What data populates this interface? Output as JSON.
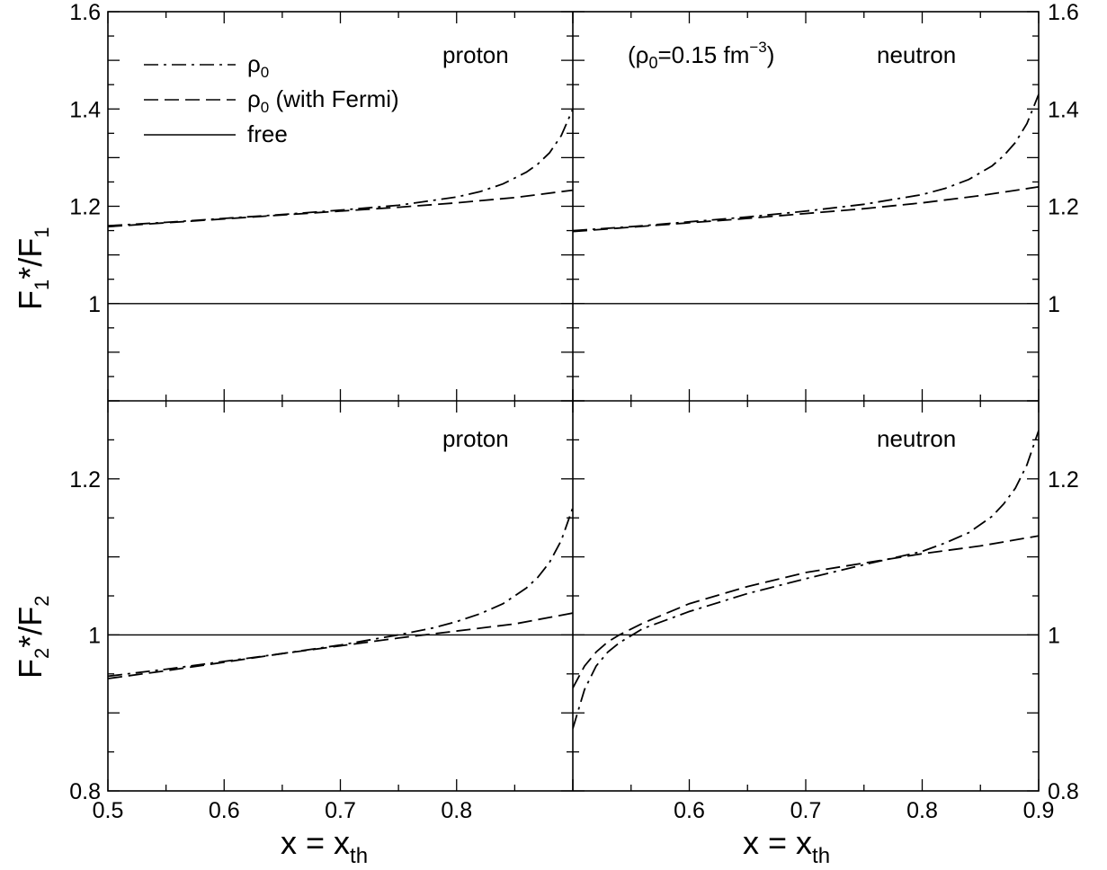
{
  "chart_data": [
    {
      "type": "line",
      "panel": "top-left",
      "label": "proton",
      "ylabel": {
        "main": "F",
        "sub1": "1",
        "mid": "*/F",
        "sub2": "1"
      },
      "xlim": [
        0.5,
        0.9
      ],
      "ylim": [
        0.8,
        1.6
      ],
      "yticks": [
        "1",
        "1.2",
        "1.4",
        "1.6"
      ],
      "series": [
        {
          "name": "ρ0",
          "style": "dashdot",
          "x": [
            0.5,
            0.55,
            0.6,
            0.65,
            0.7,
            0.75,
            0.8,
            0.82,
            0.84,
            0.86,
            0.87,
            0.88,
            0.89,
            0.9
          ],
          "y": [
            1.16,
            1.167,
            1.175,
            1.183,
            1.192,
            1.202,
            1.219,
            1.23,
            1.246,
            1.27,
            1.287,
            1.31,
            1.345,
            1.4
          ]
        },
        {
          "name": "ρ0 (with Fermi)",
          "style": "dashed",
          "x": [
            0.5,
            0.55,
            0.6,
            0.65,
            0.7,
            0.75,
            0.8,
            0.85,
            0.9
          ],
          "y": [
            1.158,
            1.166,
            1.174,
            1.182,
            1.19,
            1.198,
            1.207,
            1.218,
            1.233
          ]
        },
        {
          "name": "free",
          "style": "solid",
          "x": [
            0.5,
            0.9
          ],
          "y": [
            1.0,
            1.0
          ]
        }
      ]
    },
    {
      "type": "line",
      "panel": "top-right",
      "label": "neutron",
      "xlim": [
        0.5,
        0.9
      ],
      "ylim": [
        0.8,
        1.6
      ],
      "yticks": [
        "1",
        "1.2",
        "1.4",
        "1.6"
      ],
      "series": [
        {
          "name": "ρ0",
          "style": "dashdot",
          "x": [
            0.5,
            0.55,
            0.6,
            0.65,
            0.7,
            0.75,
            0.8,
            0.82,
            0.84,
            0.86,
            0.87,
            0.88,
            0.89,
            0.9
          ],
          "y": [
            1.15,
            1.158,
            1.168,
            1.178,
            1.19,
            1.204,
            1.224,
            1.237,
            1.255,
            1.283,
            1.304,
            1.331,
            1.37,
            1.43
          ]
        },
        {
          "name": "ρ0 (with Fermi)",
          "style": "dashed",
          "x": [
            0.5,
            0.55,
            0.6,
            0.65,
            0.7,
            0.75,
            0.8,
            0.85,
            0.9
          ],
          "y": [
            1.148,
            1.157,
            1.166,
            1.175,
            1.185,
            1.195,
            1.207,
            1.222,
            1.24
          ]
        },
        {
          "name": "free",
          "style": "solid",
          "x": [
            0.5,
            0.9
          ],
          "y": [
            1.0,
            1.0
          ]
        }
      ]
    },
    {
      "type": "line",
      "panel": "bottom-left",
      "label": "proton",
      "xlabel": {
        "main": "x = x",
        "sub": "th"
      },
      "ylabel": {
        "main": "F",
        "sub1": "2",
        "mid": "*/F",
        "sub2": "2"
      },
      "xlim": [
        0.5,
        0.9
      ],
      "ylim": [
        0.8,
        1.3
      ],
      "xticks": [
        "0.5",
        "0.6",
        "0.7",
        "0.8"
      ],
      "yticks": [
        "0.8",
        "1",
        "1.2"
      ],
      "series": [
        {
          "name": "ρ0",
          "style": "dashdot",
          "x": [
            0.5,
            0.55,
            0.6,
            0.65,
            0.7,
            0.75,
            0.78,
            0.8,
            0.82,
            0.84,
            0.86,
            0.87,
            0.88,
            0.89,
            0.9
          ],
          "y": [
            0.947,
            0.956,
            0.966,
            0.976,
            0.987,
            1.0,
            1.009,
            1.017,
            1.027,
            1.04,
            1.06,
            1.074,
            1.093,
            1.121,
            1.163
          ]
        },
        {
          "name": "ρ0 (with Fermi)",
          "style": "dashed",
          "x": [
            0.5,
            0.55,
            0.6,
            0.65,
            0.7,
            0.75,
            0.8,
            0.85,
            0.9
          ],
          "y": [
            0.944,
            0.954,
            0.965,
            0.976,
            0.986,
            0.996,
            1.005,
            1.014,
            1.028
          ]
        },
        {
          "name": "free",
          "style": "solid",
          "x": [
            0.5,
            0.9
          ],
          "y": [
            1.0,
            1.0
          ]
        }
      ]
    },
    {
      "type": "line",
      "panel": "bottom-right",
      "label": "neutron",
      "xlabel": {
        "main": "x = x",
        "sub": "th"
      },
      "xlim": [
        0.5,
        0.9
      ],
      "ylim": [
        0.8,
        1.3
      ],
      "xticks": [
        "0.6",
        "0.7",
        "0.8",
        "0.9"
      ],
      "yticks": [
        "0.8",
        "1",
        "1.2"
      ],
      "series": [
        {
          "name": "ρ0",
          "style": "dashdot",
          "x": [
            0.5,
            0.51,
            0.52,
            0.53,
            0.54,
            0.56,
            0.6,
            0.65,
            0.7,
            0.75,
            0.8,
            0.82,
            0.84,
            0.86,
            0.87,
            0.88,
            0.89,
            0.9
          ],
          "y": [
            0.88,
            0.93,
            0.96,
            0.978,
            0.99,
            1.008,
            1.03,
            1.053,
            1.072,
            1.09,
            1.107,
            1.118,
            1.131,
            1.152,
            1.168,
            1.188,
            1.218,
            1.262
          ]
        },
        {
          "name": "ρ0 (with Fermi)",
          "style": "dashed",
          "x": [
            0.5,
            0.51,
            0.52,
            0.53,
            0.54,
            0.56,
            0.6,
            0.65,
            0.7,
            0.75,
            0.8,
            0.85,
            0.9
          ],
          "y": [
            0.932,
            0.96,
            0.978,
            0.991,
            1.0,
            1.015,
            1.04,
            1.062,
            1.08,
            1.092,
            1.104,
            1.114,
            1.127
          ]
        },
        {
          "name": "free",
          "style": "solid",
          "x": [
            0.5,
            0.9
          ],
          "y": [
            1.0,
            1.0
          ]
        }
      ]
    }
  ],
  "legend": {
    "entries": [
      {
        "style": "dashdot",
        "text": "ρ",
        "sub": "0",
        "rest": ""
      },
      {
        "style": "dashed",
        "text": "ρ",
        "sub": "0",
        "rest": " (with Fermi)"
      },
      {
        "style": "solid",
        "text": "free",
        "sub": "",
        "rest": ""
      }
    ]
  },
  "annotation": {
    "open": "(ρ",
    "sub": "0",
    "mid": "=0.15 fm",
    "sup": "−3",
    "close": ")"
  }
}
